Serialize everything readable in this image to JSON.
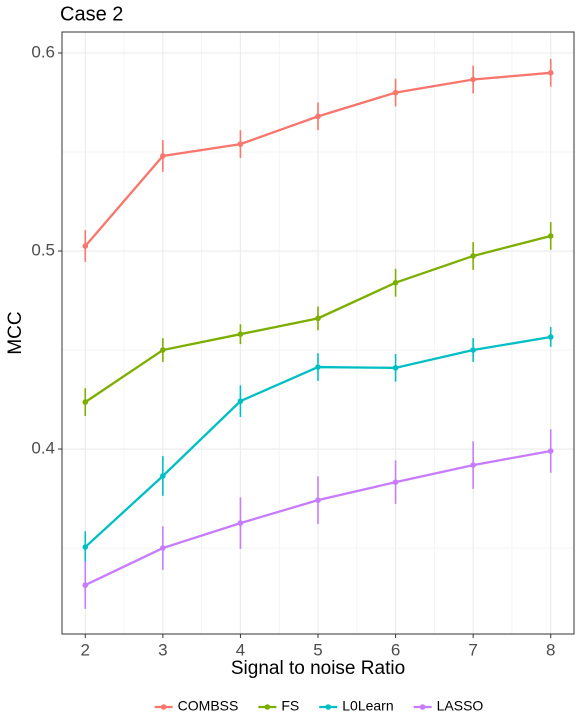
{
  "chart_data": {
    "type": "line",
    "title": "Case 2",
    "x_label": "Signal to noise Ratio",
    "y_label": "MCC",
    "x": [
      2,
      3,
      4,
      5,
      6,
      7,
      8
    ],
    "xlim": [
      1.7,
      8.3
    ],
    "xticks": [
      2,
      3,
      4,
      5,
      6,
      7,
      8
    ],
    "x_minor_ticks": [
      2.5,
      3.5,
      4.5,
      5.5,
      6.5,
      7.5
    ],
    "ylim": [
      0.3066,
      0.6106
    ],
    "yticks": [
      0.4,
      0.5,
      0.6
    ],
    "y_minor_ticks": [
      0.35,
      0.45,
      0.55
    ],
    "grid": true,
    "legend_position": "bottom",
    "series": [
      {
        "name": "COMBSS",
        "color": "#F8766D",
        "values": [
          0.5025,
          0.548,
          0.554,
          0.568,
          0.58,
          0.5866,
          0.59
        ],
        "errors": [
          0.008,
          0.008,
          0.007,
          0.007,
          0.007,
          0.007,
          0.007
        ]
      },
      {
        "name": "FS",
        "color": "#7CAE00",
        "values": [
          0.4237,
          0.45,
          0.458,
          0.466,
          0.484,
          0.4975,
          0.5076
        ],
        "errors": [
          0.007,
          0.006,
          0.005,
          0.006,
          0.007,
          0.007,
          0.007
        ]
      },
      {
        "name": "L0Learn",
        "color": "#00BFC4",
        "values": [
          0.3505,
          0.3864,
          0.4242,
          0.4414,
          0.441,
          0.45,
          0.4566
        ],
        "errors": [
          0.008,
          0.01,
          0.008,
          0.007,
          0.007,
          0.006,
          0.005
        ]
      },
      {
        "name": "LASSO",
        "color": "#C77CFF",
        "values": [
          0.3313,
          0.35,
          0.3626,
          0.3742,
          0.3833,
          0.3919,
          0.399
        ],
        "errors": [
          0.012,
          0.011,
          0.013,
          0.012,
          0.011,
          0.012,
          0.011
        ]
      }
    ]
  }
}
